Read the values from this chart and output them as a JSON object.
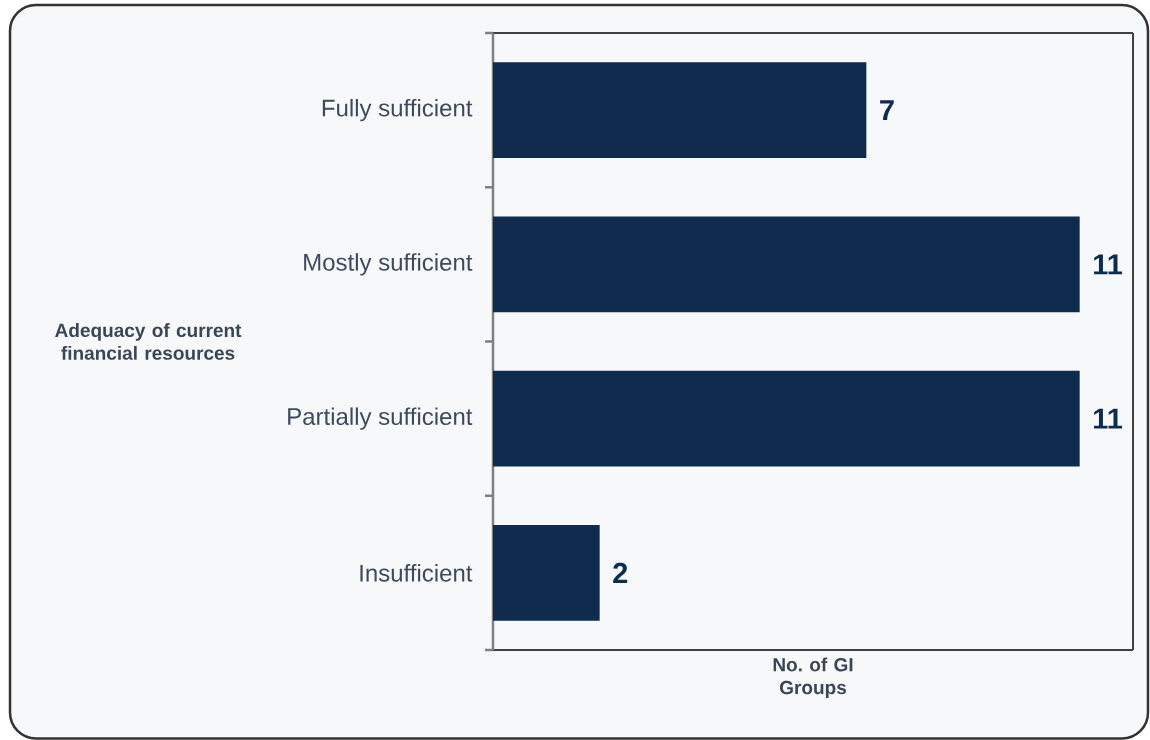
{
  "chart_data": {
    "type": "bar",
    "orientation": "horizontal",
    "categories": [
      "Fully sufficient",
      "Mostly sufficient",
      "Partially sufficient",
      "Insufficient"
    ],
    "values": [
      7,
      11,
      11,
      2
    ],
    "color": "#0f2b4d",
    "xlim": [
      0,
      12
    ],
    "xlabel": "No. of GI Groups",
    "ylabel": "Adequacy of current financial resources",
    "data_labels": true,
    "tick_labels": "y"
  }
}
